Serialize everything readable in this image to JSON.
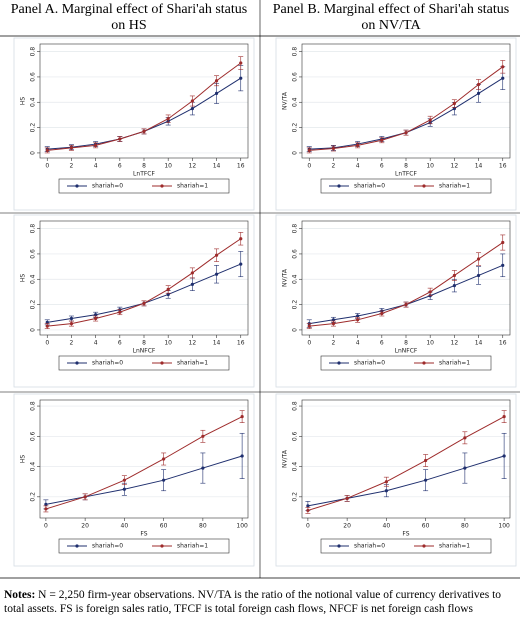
{
  "header": {
    "panel_a": [
      "Panel A. Marginal effect of Shari'ah status",
      "on HS"
    ],
    "panel_b": [
      "Panel B. Marginal effect of Shari'ah status",
      "on NV/TA"
    ]
  },
  "chart_data": [
    {
      "type": "line",
      "y_label": "HS",
      "x_label": "LnTFCF",
      "x": [
        0,
        2,
        4,
        6,
        8,
        10,
        12,
        14,
        16
      ],
      "xlim": [
        -0.6,
        16.6
      ],
      "xticks": [
        0,
        2,
        4,
        6,
        8,
        10,
        12,
        14,
        16
      ],
      "ylim": [
        -0.04,
        0.86
      ],
      "yticks": [
        0,
        0.2,
        0.4,
        0.6,
        0.8
      ],
      "series": [
        {
          "name": "shariah=0",
          "color": "#1f2f6e",
          "values": [
            0.03,
            0.045,
            0.07,
            0.11,
            0.17,
            0.25,
            0.35,
            0.47,
            0.59
          ],
          "errors": [
            0.02,
            0.02,
            0.02,
            0.02,
            0.02,
            0.03,
            0.05,
            0.08,
            0.1
          ]
        },
        {
          "name": "shariah=1",
          "color": "#9e2b2b",
          "values": [
            0.02,
            0.04,
            0.06,
            0.11,
            0.17,
            0.27,
            0.41,
            0.57,
            0.71
          ],
          "errors": [
            0.02,
            0.02,
            0.02,
            0.02,
            0.02,
            0.03,
            0.04,
            0.04,
            0.05
          ]
        }
      ]
    },
    {
      "type": "line",
      "y_label": "NV/TA",
      "x_label": "LnTFCF",
      "x": [
        0,
        2,
        4,
        6,
        8,
        10,
        12,
        14,
        16
      ],
      "xlim": [
        -0.6,
        16.6
      ],
      "xticks": [
        0,
        2,
        4,
        6,
        8,
        10,
        12,
        14,
        16
      ],
      "ylim": [
        -0.04,
        0.86
      ],
      "yticks": [
        0,
        0.2,
        0.4,
        0.6,
        0.8
      ],
      "series": [
        {
          "name": "shariah=0",
          "color": "#1f2f6e",
          "values": [
            0.03,
            0.04,
            0.07,
            0.11,
            0.16,
            0.24,
            0.35,
            0.47,
            0.59
          ],
          "errors": [
            0.02,
            0.02,
            0.02,
            0.02,
            0.02,
            0.03,
            0.05,
            0.07,
            0.09
          ]
        },
        {
          "name": "shariah=1",
          "color": "#9e2b2b",
          "values": [
            0.02,
            0.035,
            0.06,
            0.1,
            0.16,
            0.26,
            0.39,
            0.54,
            0.68
          ],
          "errors": [
            0.02,
            0.02,
            0.02,
            0.02,
            0.02,
            0.03,
            0.03,
            0.04,
            0.05
          ]
        }
      ]
    },
    {
      "type": "line",
      "y_label": "HS",
      "x_label": "LnNFCF",
      "x": [
        0,
        2,
        4,
        6,
        8,
        10,
        12,
        14,
        16
      ],
      "xlim": [
        -0.6,
        16.6
      ],
      "xticks": [
        0,
        2,
        4,
        6,
        8,
        10,
        12,
        14,
        16
      ],
      "ylim": [
        -0.04,
        0.86
      ],
      "yticks": [
        0,
        0.2,
        0.4,
        0.6,
        0.8
      ],
      "series": [
        {
          "name": "shariah=0",
          "color": "#1f2f6e",
          "values": [
            0.06,
            0.09,
            0.12,
            0.16,
            0.21,
            0.28,
            0.36,
            0.44,
            0.52
          ],
          "errors": [
            0.02,
            0.02,
            0.02,
            0.02,
            0.02,
            0.03,
            0.05,
            0.07,
            0.1
          ]
        },
        {
          "name": "shariah=1",
          "color": "#9e2b2b",
          "values": [
            0.03,
            0.05,
            0.09,
            0.14,
            0.21,
            0.32,
            0.45,
            0.59,
            0.72
          ],
          "errors": [
            0.02,
            0.02,
            0.02,
            0.02,
            0.02,
            0.03,
            0.04,
            0.05,
            0.05
          ]
        }
      ]
    },
    {
      "type": "line",
      "y_label": "NV/TA",
      "x_label": "LnNFCF",
      "x": [
        0,
        2,
        4,
        6,
        8,
        10,
        12,
        14,
        16
      ],
      "xlim": [
        -0.6,
        16.6
      ],
      "xticks": [
        0,
        2,
        4,
        6,
        8,
        10,
        12,
        14,
        16
      ],
      "ylim": [
        -0.04,
        0.86
      ],
      "yticks": [
        0,
        0.2,
        0.4,
        0.6,
        0.8
      ],
      "series": [
        {
          "name": "shariah=0",
          "color": "#1f2f6e",
          "values": [
            0.05,
            0.08,
            0.11,
            0.15,
            0.2,
            0.27,
            0.35,
            0.43,
            0.51
          ],
          "errors": [
            0.03,
            0.02,
            0.02,
            0.02,
            0.02,
            0.03,
            0.05,
            0.07,
            0.09
          ]
        },
        {
          "name": "shariah=1",
          "color": "#9e2b2b",
          "values": [
            0.03,
            0.05,
            0.08,
            0.13,
            0.2,
            0.3,
            0.43,
            0.56,
            0.69
          ],
          "errors": [
            0.02,
            0.02,
            0.02,
            0.02,
            0.02,
            0.03,
            0.04,
            0.05,
            0.06
          ]
        }
      ]
    },
    {
      "type": "line",
      "y_label": "HS",
      "x_label": "FS",
      "x": [
        0,
        20,
        40,
        60,
        80,
        100
      ],
      "xlim": [
        -3,
        103
      ],
      "xticks": [
        0,
        20,
        40,
        60,
        80,
        100
      ],
      "ylim": [
        0.06,
        0.84
      ],
      "yticks": [
        0.2,
        0.4,
        0.6,
        0.8
      ],
      "series": [
        {
          "name": "shariah=0",
          "color": "#1f2f6e",
          "values": [
            0.15,
            0.2,
            0.25,
            0.31,
            0.39,
            0.47
          ],
          "errors": [
            0.03,
            0.02,
            0.04,
            0.07,
            0.1,
            0.15
          ]
        },
        {
          "name": "shariah=1",
          "color": "#9e2b2b",
          "values": [
            0.12,
            0.2,
            0.31,
            0.45,
            0.6,
            0.73
          ],
          "errors": [
            0.02,
            0.02,
            0.03,
            0.04,
            0.04,
            0.04
          ]
        }
      ]
    },
    {
      "type": "line",
      "y_label": "NV/TA",
      "x_label": "FS",
      "x": [
        0,
        20,
        40,
        60,
        80,
        100
      ],
      "xlim": [
        -3,
        103
      ],
      "xticks": [
        0,
        20,
        40,
        60,
        80,
        100
      ],
      "ylim": [
        0.06,
        0.84
      ],
      "yticks": [
        0.2,
        0.4,
        0.6,
        0.8
      ],
      "series": [
        {
          "name": "shariah=0",
          "color": "#1f2f6e",
          "values": [
            0.14,
            0.19,
            0.24,
            0.31,
            0.39,
            0.47
          ],
          "errors": [
            0.03,
            0.02,
            0.04,
            0.07,
            0.1,
            0.15
          ]
        },
        {
          "name": "shariah=1",
          "color": "#9e2b2b",
          "values": [
            0.11,
            0.19,
            0.3,
            0.44,
            0.59,
            0.73
          ],
          "errors": [
            0.02,
            0.02,
            0.03,
            0.04,
            0.04,
            0.04
          ]
        }
      ]
    }
  ],
  "notes": {
    "label": "Notes:",
    "text": "N = 2,250 firm-year observations. NV/TA is the ratio of the notional value of currency derivatives to total assets. FS is foreign sales ratio, TFCF is total foreign cash flows, NFCF is net foreign cash flows"
  }
}
